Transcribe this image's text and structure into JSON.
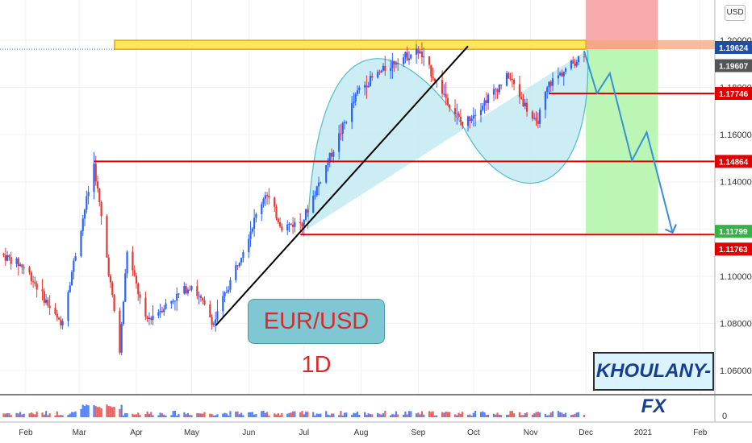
{
  "header": {
    "currency": "USD"
  },
  "labels": {
    "pair": "EUR/USD 1D",
    "brand": "KHOULANY-FX"
  },
  "colors": {
    "up": "#2962ff",
    "down": "#e53935",
    "level_line": "#e00000",
    "resistance_fill": "#ffe75c",
    "resistance_border": "#e0a800",
    "stop_zone": "#f7a6a6",
    "target_zone": "#b7f5b0",
    "cup_fill": "#c6ecf2",
    "cup_stroke": "#3fb6c6",
    "projection": "#3b8fd9",
    "current_badge": "#1f4fa3",
    "level_badge": "#e00000",
    "target_badge": "#35b24a",
    "gray_badge": "#555555"
  },
  "chart_data": {
    "type": "candlestick",
    "symbol": "EUR/USD",
    "timeframe": "1D",
    "currency": "USD",
    "y_range": [
      1.04,
      1.205
    ],
    "y_ticks": [
      {
        "value": 1.2,
        "label": "1.20000"
      },
      {
        "value": 1.18,
        "label": "1.18000"
      },
      {
        "value": 1.16,
        "label": "1.16000"
      },
      {
        "value": 1.14,
        "label": "1.14000"
      },
      {
        "value": 1.12,
        "label": "1.12000"
      },
      {
        "value": 1.1,
        "label": "1.10000"
      },
      {
        "value": 1.08,
        "label": "1.08000"
      },
      {
        "value": 1.06,
        "label": "1.06000"
      }
    ],
    "x_range": [
      "2020-01-18",
      "2021-02-09"
    ],
    "x_ticks": [
      {
        "date": "2020-02-01",
        "label": "Feb"
      },
      {
        "date": "2020-03-01",
        "label": "Mar"
      },
      {
        "date": "2020-04-01",
        "label": "Apr"
      },
      {
        "date": "2020-05-01",
        "label": "May"
      },
      {
        "date": "2020-06-01",
        "label": "Jun"
      },
      {
        "date": "2020-07-01",
        "label": "Jul"
      },
      {
        "date": "2020-08-01",
        "label": "Aug"
      },
      {
        "date": "2020-09-01",
        "label": "Sep"
      },
      {
        "date": "2020-10-01",
        "label": "Oct"
      },
      {
        "date": "2020-11-01",
        "label": "Nov"
      },
      {
        "date": "2020-12-01",
        "label": "Dec"
      },
      {
        "date": "2021-01-01",
        "label": "2021"
      },
      {
        "date": "2021-02-01",
        "label": "Feb"
      }
    ],
    "price_path": [
      {
        "date": "2020-01-18",
        "close": 1.1095
      },
      {
        "date": "2020-02-01",
        "close": 1.1035
      },
      {
        "date": "2020-02-20",
        "close": 1.079
      },
      {
        "date": "2020-03-09",
        "close": 1.1475
      },
      {
        "date": "2020-03-23",
        "close": 1.068
      },
      {
        "date": "2020-03-27",
        "close": 1.111
      },
      {
        "date": "2020-04-06",
        "close": 1.081
      },
      {
        "date": "2020-05-01",
        "close": 1.0965
      },
      {
        "date": "2020-05-13",
        "close": 1.08
      },
      {
        "date": "2020-06-10",
        "close": 1.1355
      },
      {
        "date": "2020-06-19",
        "close": 1.121
      },
      {
        "date": "2020-06-30",
        "close": 1.123
      },
      {
        "date": "2020-07-31",
        "close": 1.1795
      },
      {
        "date": "2020-08-20",
        "close": 1.1915
      },
      {
        "date": "2020-09-01",
        "close": 1.1955
      },
      {
        "date": "2020-09-25",
        "close": 1.164
      },
      {
        "date": "2020-10-20",
        "close": 1.185
      },
      {
        "date": "2020-11-04",
        "close": 1.164
      },
      {
        "date": "2020-11-11",
        "close": 1.1815
      },
      {
        "date": "2020-11-30",
        "close": 1.1945
      }
    ],
    "levels": [
      {
        "name": "resistance_zone",
        "from": 1.1962,
        "to": 1.2
      }
    ],
    "horizontal_lines": [
      {
        "price": 1.17746,
        "label": "1.17746",
        "start": "2020-11-11"
      },
      {
        "price": 1.14864,
        "label": "1.14864",
        "start": "2020-03-09"
      },
      {
        "price": 1.11763,
        "label": "1.11763",
        "start": "2020-06-29"
      }
    ],
    "price_badges": [
      {
        "price": 1.19624,
        "label": "1.19624",
        "kind": "current"
      },
      {
        "price": 1.19607,
        "label": "1.19607",
        "kind": "gray"
      },
      {
        "price": 1.17746,
        "label": "1.17746",
        "kind": "level"
      },
      {
        "price": 1.14864,
        "label": "1.14864",
        "kind": "level"
      },
      {
        "price": 1.11799,
        "label": "1.11799",
        "kind": "target"
      },
      {
        "price": 1.11763,
        "label": "1.11763",
        "kind": "level"
      }
    ],
    "trendline": [
      {
        "date": "2020-05-14",
        "price": 1.079
      },
      {
        "date": "2020-09-28",
        "price": 1.1975
      }
    ],
    "short_position": {
      "start": "2020-12-01",
      "end": "2021-01-09",
      "entry": 1.19624,
      "stop": 1.215,
      "target": 1.11799
    },
    "projection": [
      {
        "date": "2020-11-30",
        "price": 1.1955
      },
      {
        "date": "2020-12-07",
        "price": 1.1775
      },
      {
        "date": "2020-12-14",
        "price": 1.186
      },
      {
        "date": "2020-12-26",
        "price": 1.149
      },
      {
        "date": "2021-01-03",
        "price": 1.161
      },
      {
        "date": "2021-01-17",
        "price": 1.1185
      },
      {
        "date": "2021-01-19",
        "price": 1.122
      }
    ],
    "volume_range": [
      0,
      1
    ]
  }
}
